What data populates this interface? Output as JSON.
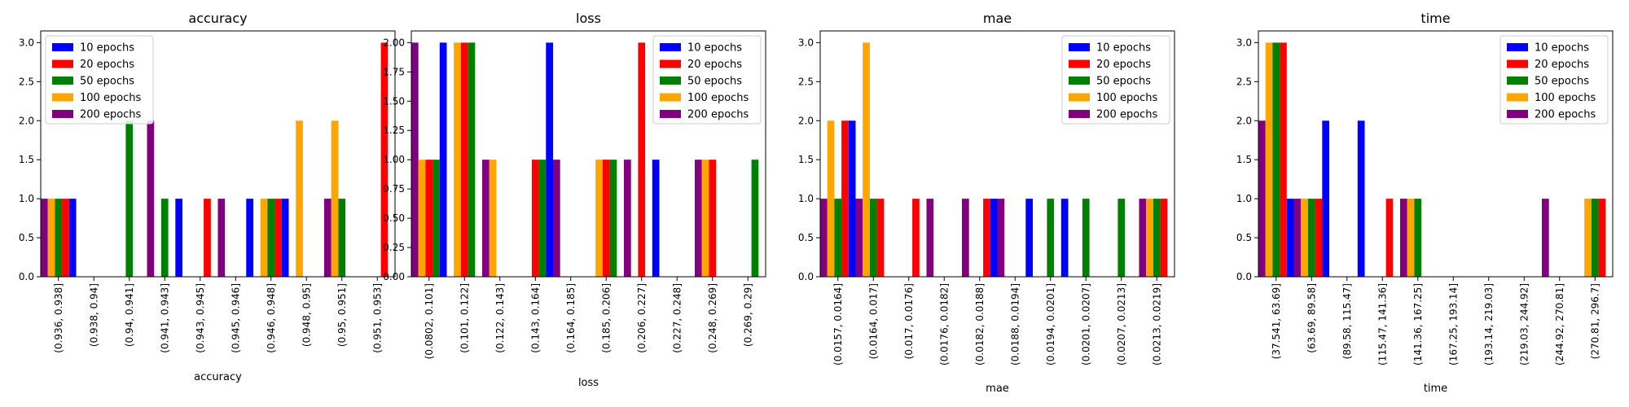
{
  "colors": {
    "10 epochs": "#0000ff",
    "20 epochs": "#ff0000",
    "50 epochs": "#008000",
    "100 epochs": "#ffa500",
    "200 epochs": "#800080"
  },
  "chart_data": [
    {
      "type": "bar",
      "title": "accuracy",
      "xlabel": "accuracy",
      "ylabel": "",
      "ylim": [
        0,
        3.15
      ],
      "yticks": [
        "0.0",
        "0.5",
        "1.0",
        "1.5",
        "2.0",
        "2.5",
        "3.0"
      ],
      "legend": "top-left",
      "bar_order": [
        "200 epochs",
        "100 epochs",
        "50 epochs",
        "20 epochs",
        "10 epochs"
      ],
      "categories": [
        "(0.936, 0.938]",
        "(0.938, 0.94]",
        "(0.94, 0.941]",
        "(0.941, 0.943]",
        "(0.943, 0.945]",
        "(0.945, 0.946]",
        "(0.946, 0.948]",
        "(0.948, 0.95]",
        "(0.95, 0.951]",
        "(0.951, 0.953]"
      ],
      "series": [
        {
          "name": "10 epochs",
          "values": [
            1,
            0,
            0,
            1,
            0,
            1,
            1,
            0,
            0,
            0
          ]
        },
        {
          "name": "20 epochs",
          "values": [
            1,
            0,
            0,
            0,
            1,
            0,
            1,
            0,
            0,
            3
          ]
        },
        {
          "name": "50 epochs",
          "values": [
            1,
            0,
            2,
            1,
            0,
            0,
            1,
            0,
            1,
            0
          ]
        },
        {
          "name": "100 epochs",
          "values": [
            1,
            0,
            0,
            0,
            0,
            0,
            1,
            2,
            2,
            0
          ]
        },
        {
          "name": "200 epochs",
          "values": [
            1,
            0,
            0,
            2,
            0,
            1,
            0,
            0,
            1,
            0
          ]
        }
      ]
    },
    {
      "type": "bar",
      "title": "loss",
      "xlabel": "loss",
      "ylabel": "",
      "ylim": [
        0,
        2.1
      ],
      "yticks": [
        "0.00",
        "0.25",
        "0.50",
        "0.75",
        "1.00",
        "1.25",
        "1.50",
        "1.75",
        "2.00"
      ],
      "legend": "top-right",
      "bar_order": [
        "200 epochs",
        "100 epochs",
        "20 epochs",
        "50 epochs",
        "10 epochs"
      ],
      "categories": [
        "(0.0802, 0.101]",
        "(0.101, 0.122]",
        "(0.122, 0.143]",
        "(0.143, 0.164]",
        "(0.164, 0.185]",
        "(0.185, 0.206]",
        "(0.206, 0.227]",
        "(0.227, 0.248]",
        "(0.248, 0.269]",
        "(0.269, 0.29]"
      ],
      "series": [
        {
          "name": "10 epochs",
          "values": [
            2,
            0,
            0,
            2,
            0,
            0,
            1,
            0,
            0,
            0
          ]
        },
        {
          "name": "20 epochs",
          "values": [
            1,
            2,
            0,
            1,
            0,
            1,
            2,
            0,
            1,
            0
          ]
        },
        {
          "name": "50 epochs",
          "values": [
            1,
            2,
            0,
            1,
            0,
            1,
            0,
            0,
            0,
            1
          ]
        },
        {
          "name": "100 epochs",
          "values": [
            1,
            2,
            1,
            0,
            0,
            1,
            0,
            0,
            1,
            0
          ]
        },
        {
          "name": "200 epochs",
          "values": [
            2,
            0,
            1,
            0,
            1,
            0,
            1,
            0,
            1,
            0
          ]
        }
      ]
    },
    {
      "type": "bar",
      "title": "mae",
      "xlabel": "mae",
      "ylabel": "",
      "ylim": [
        0,
        3.15
      ],
      "yticks": [
        "0.0",
        "0.5",
        "1.0",
        "1.5",
        "2.0",
        "2.5",
        "3.0"
      ],
      "legend": "top-right",
      "bar_order": [
        "200 epochs",
        "100 epochs",
        "50 epochs",
        "20 epochs",
        "10 epochs"
      ],
      "categories": [
        "(0.0157, 0.0164]",
        "(0.0164, 0.017]",
        "(0.017, 0.0176]",
        "(0.0176, 0.0182]",
        "(0.0182, 0.0188]",
        "(0.0188, 0.0194]",
        "(0.0194, 0.0201]",
        "(0.0201, 0.0207]",
        "(0.0207, 0.0213]",
        "(0.0213, 0.0219]"
      ],
      "series": [
        {
          "name": "10 epochs",
          "values": [
            2,
            0,
            0,
            0,
            1,
            1,
            1,
            0,
            0,
            0
          ]
        },
        {
          "name": "20 epochs",
          "values": [
            2,
            1,
            1,
            0,
            1,
            0,
            0,
            0,
            0,
            1
          ]
        },
        {
          "name": "50 epochs",
          "values": [
            1,
            1,
            0,
            0,
            0,
            0,
            1,
            1,
            1,
            1
          ]
        },
        {
          "name": "100 epochs",
          "values": [
            2,
            3,
            0,
            0,
            0,
            0,
            0,
            0,
            0,
            1
          ]
        },
        {
          "name": "200 epochs",
          "values": [
            1,
            1,
            0,
            1,
            1,
            1,
            0,
            0,
            0,
            1
          ]
        }
      ]
    },
    {
      "type": "bar",
      "title": "time",
      "xlabel": "time",
      "ylabel": "",
      "ylim": [
        0,
        3.15
      ],
      "yticks": [
        "0.0",
        "0.5",
        "1.0",
        "1.5",
        "2.0",
        "2.5",
        "3.0"
      ],
      "legend": "top-right",
      "bar_order": [
        "200 epochs",
        "100 epochs",
        "50 epochs",
        "20 epochs",
        "10 epochs"
      ],
      "categories": [
        "(37.541, 63.69]",
        "(63.69, 89.58]",
        "(89.58, 115.47]",
        "(115.47, 141.36]",
        "(141.36, 167.25]",
        "(167.25, 193.14]",
        "(193.14, 219.03]",
        "(219.03, 244.92]",
        "(244.92, 270.81]",
        "(270.81, 296.7]"
      ],
      "series": [
        {
          "name": "10 epochs",
          "values": [
            1,
            2,
            2,
            0,
            0,
            0,
            0,
            0,
            0,
            0
          ]
        },
        {
          "name": "20 epochs",
          "values": [
            3,
            1,
            0,
            1,
            0,
            0,
            0,
            0,
            0,
            1
          ]
        },
        {
          "name": "50 epochs",
          "values": [
            3,
            1,
            0,
            0,
            1,
            0,
            0,
            0,
            0,
            1
          ]
        },
        {
          "name": "100 epochs",
          "values": [
            3,
            1,
            0,
            0,
            1,
            0,
            0,
            0,
            0,
            1
          ]
        },
        {
          "name": "200 epochs",
          "values": [
            2,
            1,
            0,
            0,
            1,
            0,
            0,
            0,
            1,
            0
          ]
        }
      ]
    }
  ]
}
